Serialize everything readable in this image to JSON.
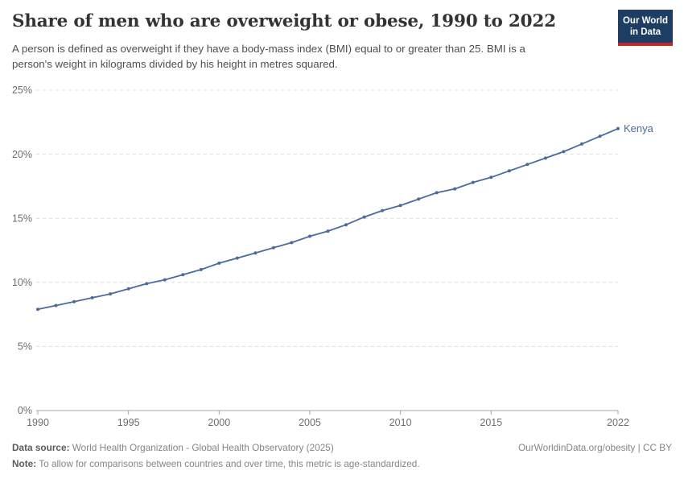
{
  "header": {
    "title": "Share of men who are overweight or obese, 1990 to 2022",
    "subtitle": "A person is defined as overweight if they have a body-mass index (BMI) equal to or greater than 25. BMI is a person's weight in kilograms divided by his height in metres squared.",
    "logo": {
      "line1": "Our World",
      "line2": "in Data"
    }
  },
  "chart_data": {
    "type": "line",
    "title": "Share of men who are overweight or obese, 1990 to 2022",
    "x": [
      1990,
      1991,
      1992,
      1993,
      1994,
      1995,
      1996,
      1997,
      1998,
      1999,
      2000,
      2001,
      2002,
      2003,
      2004,
      2005,
      2006,
      2007,
      2008,
      2009,
      2010,
      2011,
      2012,
      2013,
      2014,
      2015,
      2016,
      2017,
      2018,
      2019,
      2020,
      2021,
      2022
    ],
    "series": [
      {
        "name": "Kenya",
        "color": "#4C6A9C",
        "values": [
          7.9,
          8.2,
          8.5,
          8.8,
          9.1,
          9.5,
          9.9,
          10.2,
          10.6,
          11.0,
          11.5,
          11.9,
          12.3,
          12.7,
          13.1,
          13.6,
          14.0,
          14.5,
          15.1,
          15.6,
          16.0,
          16.5,
          17.0,
          17.3,
          17.8,
          18.2,
          18.7,
          19.2,
          19.7,
          20.2,
          20.8,
          21.4,
          22.0
        ]
      }
    ],
    "xlabel": "",
    "ylabel": "",
    "ylim": [
      0,
      25
    ],
    "yticks": [
      0,
      5,
      10,
      15,
      20,
      25
    ],
    "ytick_suffix": "%",
    "xticks": [
      1990,
      1995,
      2000,
      2005,
      2010,
      2015,
      2022
    ],
    "grid": "horizontal-dashed",
    "legend_position": "end-of-line-label"
  },
  "footer": {
    "data_source_label": "Data source:",
    "data_source_text": " World Health Organization - Global Health Observatory (2025)",
    "citation": "OurWorldinData.org/obesity | CC BY",
    "note_label": "Note:",
    "note_text": " To allow for comparisons between countries and over time, this metric is age-standardized."
  },
  "colors": {
    "line": "#4C6A9C",
    "grid": "#dcdcdc",
    "axis": "#a5a5a5",
    "tick_label": "#6d6d6d",
    "logo_navy": "#1d3d63",
    "logo_red": "#c0272d"
  }
}
